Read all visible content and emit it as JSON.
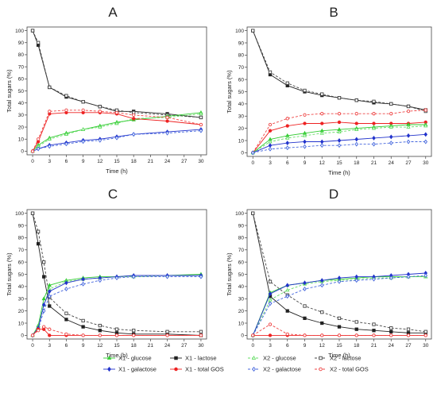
{
  "panels_common": {
    "xlabel": "Time (h)",
    "ylabel": "Total sugars (%)",
    "xticks": [
      0,
      3,
      6,
      9,
      12,
      15,
      18,
      21,
      24,
      27,
      30
    ],
    "yticks": [
      0,
      10,
      20,
      30,
      40,
      50,
      60,
      70,
      80,
      90,
      100
    ],
    "xlim": [
      -1,
      31
    ],
    "ylim": [
      -3,
      103
    ]
  },
  "legend": {
    "placement": "bottom",
    "entries": [
      {
        "key": "X1_glucose",
        "label": "X1 - glucose"
      },
      {
        "key": "X1_lactose",
        "label": "X1 - lactose"
      },
      {
        "key": "X2_glucose",
        "label": "X2 - glucose"
      },
      {
        "key": "X2_lactose",
        "label": "X2 - lactose"
      },
      {
        "key": "X1_galactose",
        "label": "X1 - galactose"
      },
      {
        "key": "X1_totalGOS",
        "label": "X1 - total GOS"
      },
      {
        "key": "X2_galactose",
        "label": "X2 - galactose"
      },
      {
        "key": "X2_totalGOS",
        "label": "X2 - total GOS"
      }
    ]
  },
  "styles": {
    "X1_glucose": {
      "color": "#33cc33",
      "dash": false,
      "marker": "triangle",
      "filled": true
    },
    "X1_galactose": {
      "color": "#2233cc",
      "dash": false,
      "marker": "diamond",
      "filled": true
    },
    "X1_lactose": {
      "color": "#222222",
      "dash": false,
      "marker": "square",
      "filled": true
    },
    "X1_totalGOS": {
      "color": "#ee2222",
      "dash": false,
      "marker": "circle",
      "filled": true
    },
    "X2_glucose": {
      "color": "#66dd66",
      "dash": true,
      "marker": "triangle",
      "filled": false
    },
    "X2_galactose": {
      "color": "#4466dd",
      "dash": true,
      "marker": "diamond",
      "filled": false
    },
    "X2_lactose": {
      "color": "#444444",
      "dash": true,
      "marker": "square",
      "filled": false
    },
    "X2_totalGOS": {
      "color": "#ee4444",
      "dash": true,
      "marker": "circle",
      "filled": false
    }
  },
  "chart_data": [
    {
      "type": "line",
      "title": "A",
      "xlabel": "Time (h)",
      "ylabel": "Total sugars (%)",
      "xlim": [
        -1,
        31
      ],
      "ylim": [
        -3,
        103
      ],
      "series": [
        {
          "key": "X1_lactose",
          "x": [
            0,
            1,
            3,
            6,
            9,
            12,
            15,
            18,
            24,
            30
          ],
          "y": [
            100,
            88,
            53,
            45,
            41,
            37,
            33,
            33,
            31,
            28
          ]
        },
        {
          "key": "X2_lactose",
          "x": [
            0,
            1,
            3,
            6,
            9,
            12,
            15,
            18,
            24,
            30
          ],
          "y": [
            100,
            90,
            53,
            46,
            41,
            37,
            34,
            32,
            30,
            28
          ]
        },
        {
          "key": "X1_glucose",
          "x": [
            0,
            1,
            3,
            6,
            9,
            12,
            15,
            18,
            24,
            30
          ],
          "y": [
            0,
            5,
            11,
            15,
            18,
            21,
            24,
            26,
            29,
            32
          ]
        },
        {
          "key": "X2_glucose",
          "x": [
            0,
            1,
            3,
            6,
            9,
            12,
            15,
            18,
            24,
            30
          ],
          "y": [
            0,
            4,
            10,
            14,
            18,
            20,
            23,
            27,
            28,
            31
          ]
        },
        {
          "key": "X1_galactose",
          "x": [
            0,
            1,
            3,
            6,
            9,
            12,
            15,
            18,
            24,
            30
          ],
          "y": [
            0,
            2,
            5,
            7,
            9,
            10,
            12,
            14,
            16,
            18
          ]
        },
        {
          "key": "X2_galactose",
          "x": [
            0,
            1,
            3,
            6,
            9,
            12,
            15,
            18,
            24,
            30
          ],
          "y": [
            0,
            2,
            4,
            6,
            8,
            9,
            11,
            14,
            15,
            17
          ]
        },
        {
          "key": "X1_totalGOS",
          "x": [
            0,
            1,
            3,
            6,
            9,
            12,
            15,
            18,
            24,
            30
          ],
          "y": [
            0,
            8,
            31,
            32,
            32,
            32,
            31,
            27,
            25,
            22
          ]
        },
        {
          "key": "X2_totalGOS",
          "x": [
            0,
            1,
            3,
            6,
            9,
            12,
            15,
            18,
            24,
            30
          ],
          "y": [
            0,
            10,
            33,
            34,
            34,
            33,
            32,
            30,
            28,
            22
          ]
        }
      ]
    },
    {
      "type": "line",
      "title": "B",
      "xlabel": "Time (h)",
      "ylabel": "Total sugars (%)",
      "xlim": [
        -1,
        31
      ],
      "ylim": [
        -3,
        103
      ],
      "series": [
        {
          "key": "X1_lactose",
          "x": [
            0,
            3,
            6,
            9,
            12,
            15,
            18,
            21,
            24,
            27,
            30
          ],
          "y": [
            100,
            64,
            55,
            50,
            47,
            45,
            43,
            41,
            40,
            38,
            35
          ]
        },
        {
          "key": "X2_lactose",
          "x": [
            0,
            3,
            6,
            9,
            12,
            15,
            18,
            21,
            24,
            27,
            30
          ],
          "y": [
            100,
            66,
            57,
            51,
            48,
            45,
            43,
            42,
            40,
            38,
            34
          ]
        },
        {
          "key": "X1_totalGOS",
          "x": [
            0,
            3,
            6,
            9,
            12,
            15,
            18,
            21,
            24,
            27,
            30
          ],
          "y": [
            0,
            18,
            22,
            24,
            24,
            25,
            24,
            24,
            24,
            24,
            25
          ]
        },
        {
          "key": "X2_totalGOS",
          "x": [
            0,
            3,
            6,
            9,
            12,
            15,
            18,
            21,
            24,
            27,
            30
          ],
          "y": [
            0,
            23,
            28,
            31,
            32,
            32,
            32,
            32,
            32,
            34,
            35
          ]
        },
        {
          "key": "X1_glucose",
          "x": [
            0,
            3,
            6,
            9,
            12,
            15,
            18,
            21,
            24,
            27,
            30
          ],
          "y": [
            0,
            11,
            14,
            16,
            18,
            19,
            20,
            21,
            22,
            23,
            23
          ]
        },
        {
          "key": "X2_glucose",
          "x": [
            0,
            3,
            6,
            9,
            12,
            15,
            18,
            21,
            24,
            27,
            30
          ],
          "y": [
            0,
            9,
            12,
            14,
            16,
            17,
            19,
            20,
            21,
            21,
            22
          ]
        },
        {
          "key": "X1_galactose",
          "x": [
            0,
            3,
            6,
            9,
            12,
            15,
            18,
            21,
            24,
            27,
            30
          ],
          "y": [
            0,
            6,
            8,
            9,
            9,
            10,
            11,
            12,
            13,
            14,
            15
          ]
        },
        {
          "key": "X2_galactose",
          "x": [
            0,
            3,
            6,
            9,
            12,
            15,
            18,
            21,
            24,
            27,
            30
          ],
          "y": [
            0,
            3,
            4,
            5,
            6,
            6,
            7,
            7,
            8,
            9,
            9
          ]
        }
      ]
    },
    {
      "type": "line",
      "title": "C",
      "xlabel": "Time (h)",
      "ylabel": "Total sugars (%)",
      "xlim": [
        -1,
        31
      ],
      "ylim": [
        -3,
        103
      ],
      "series": [
        {
          "key": "X1_lactose",
          "x": [
            0,
            1,
            2,
            3,
            6,
            9,
            12,
            15,
            18,
            24,
            30
          ],
          "y": [
            100,
            75,
            48,
            24,
            13,
            7,
            4,
            2,
            1,
            1,
            0
          ]
        },
        {
          "key": "X2_lactose",
          "x": [
            0,
            1,
            2,
            3,
            6,
            9,
            12,
            15,
            18,
            24,
            30
          ],
          "y": [
            100,
            85,
            60,
            31,
            18,
            12,
            8,
            5,
            4,
            3,
            3
          ]
        },
        {
          "key": "X1_glucose",
          "x": [
            0,
            1,
            2,
            3,
            6,
            9,
            12,
            15,
            18,
            24,
            30
          ],
          "y": [
            0,
            8,
            30,
            41,
            45,
            47,
            48,
            48,
            49,
            49,
            50
          ]
        },
        {
          "key": "X2_glucose",
          "x": [
            0,
            1,
            2,
            3,
            6,
            9,
            12,
            15,
            18,
            24,
            30
          ],
          "y": [
            0,
            7,
            25,
            38,
            44,
            46,
            47,
            48,
            48,
            49,
            49
          ]
        },
        {
          "key": "X1_galactose",
          "x": [
            0,
            1,
            2,
            3,
            6,
            9,
            12,
            15,
            18,
            24,
            30
          ],
          "y": [
            0,
            6,
            25,
            36,
            43,
            46,
            47,
            48,
            49,
            49,
            49
          ]
        },
        {
          "key": "X2_galactose",
          "x": [
            0,
            1,
            2,
            3,
            6,
            9,
            12,
            15,
            18,
            24,
            30
          ],
          "y": [
            0,
            5,
            20,
            32,
            38,
            42,
            45,
            47,
            48,
            48,
            48
          ]
        },
        {
          "key": "X1_totalGOS",
          "x": [
            0,
            1,
            2,
            3,
            6,
            9,
            12,
            15,
            18,
            24,
            30
          ],
          "y": [
            0,
            5,
            5,
            0,
            0,
            0,
            0,
            0,
            0,
            0,
            0
          ]
        },
        {
          "key": "X2_totalGOS",
          "x": [
            0,
            1,
            2,
            3,
            6,
            9,
            12,
            15,
            18,
            24,
            30
          ],
          "y": [
            0,
            4,
            7,
            5,
            1,
            0,
            0,
            0,
            0,
            0,
            0
          ]
        }
      ]
    },
    {
      "type": "line",
      "title": "D",
      "xlabel": "Time (h)",
      "ylabel": "Total sugars (%)",
      "xlim": [
        -1,
        31
      ],
      "ylim": [
        -3,
        103
      ],
      "series": [
        {
          "key": "X1_lactose",
          "x": [
            0,
            3,
            6,
            9,
            12,
            15,
            18,
            21,
            24,
            27,
            30
          ],
          "y": [
            100,
            32,
            20,
            14,
            10,
            7,
            5,
            4,
            3,
            2,
            2
          ]
        },
        {
          "key": "X2_lactose",
          "x": [
            0,
            3,
            6,
            9,
            12,
            15,
            18,
            21,
            24,
            27,
            30
          ],
          "y": [
            100,
            44,
            33,
            24,
            19,
            14,
            11,
            9,
            6,
            5,
            3
          ]
        },
        {
          "key": "X1_glucose",
          "x": [
            0,
            3,
            6,
            9,
            12,
            15,
            18,
            21,
            24,
            27,
            30
          ],
          "y": [
            0,
            35,
            41,
            43,
            45,
            46,
            47,
            48,
            48,
            48,
            48
          ]
        },
        {
          "key": "X2_glucose",
          "x": [
            0,
            3,
            6,
            9,
            12,
            15,
            18,
            21,
            24,
            27,
            30
          ],
          "y": [
            0,
            29,
            37,
            42,
            44,
            45,
            46,
            47,
            47,
            48,
            48
          ]
        },
        {
          "key": "X1_galactose",
          "x": [
            0,
            3,
            6,
            9,
            12,
            15,
            18,
            21,
            24,
            27,
            30
          ],
          "y": [
            0,
            34,
            41,
            43,
            45,
            47,
            48,
            48,
            49,
            50,
            51
          ]
        },
        {
          "key": "X2_galactose",
          "x": [
            0,
            3,
            6,
            9,
            12,
            15,
            18,
            21,
            24,
            27,
            30
          ],
          "y": [
            0,
            26,
            32,
            38,
            41,
            44,
            45,
            46,
            47,
            48,
            49
          ]
        },
        {
          "key": "X1_totalGOS",
          "x": [
            0,
            3,
            6,
            9,
            12,
            15,
            18,
            21,
            24,
            27,
            30
          ],
          "y": [
            0,
            0,
            0,
            0,
            0,
            0,
            0,
            0,
            0,
            0,
            0
          ]
        },
        {
          "key": "X2_totalGOS",
          "x": [
            0,
            3,
            6,
            9,
            12,
            15,
            18,
            21,
            24,
            27,
            30
          ],
          "y": [
            0,
            9,
            1,
            0,
            0,
            0,
            0,
            0,
            0,
            0,
            0
          ]
        }
      ]
    }
  ]
}
